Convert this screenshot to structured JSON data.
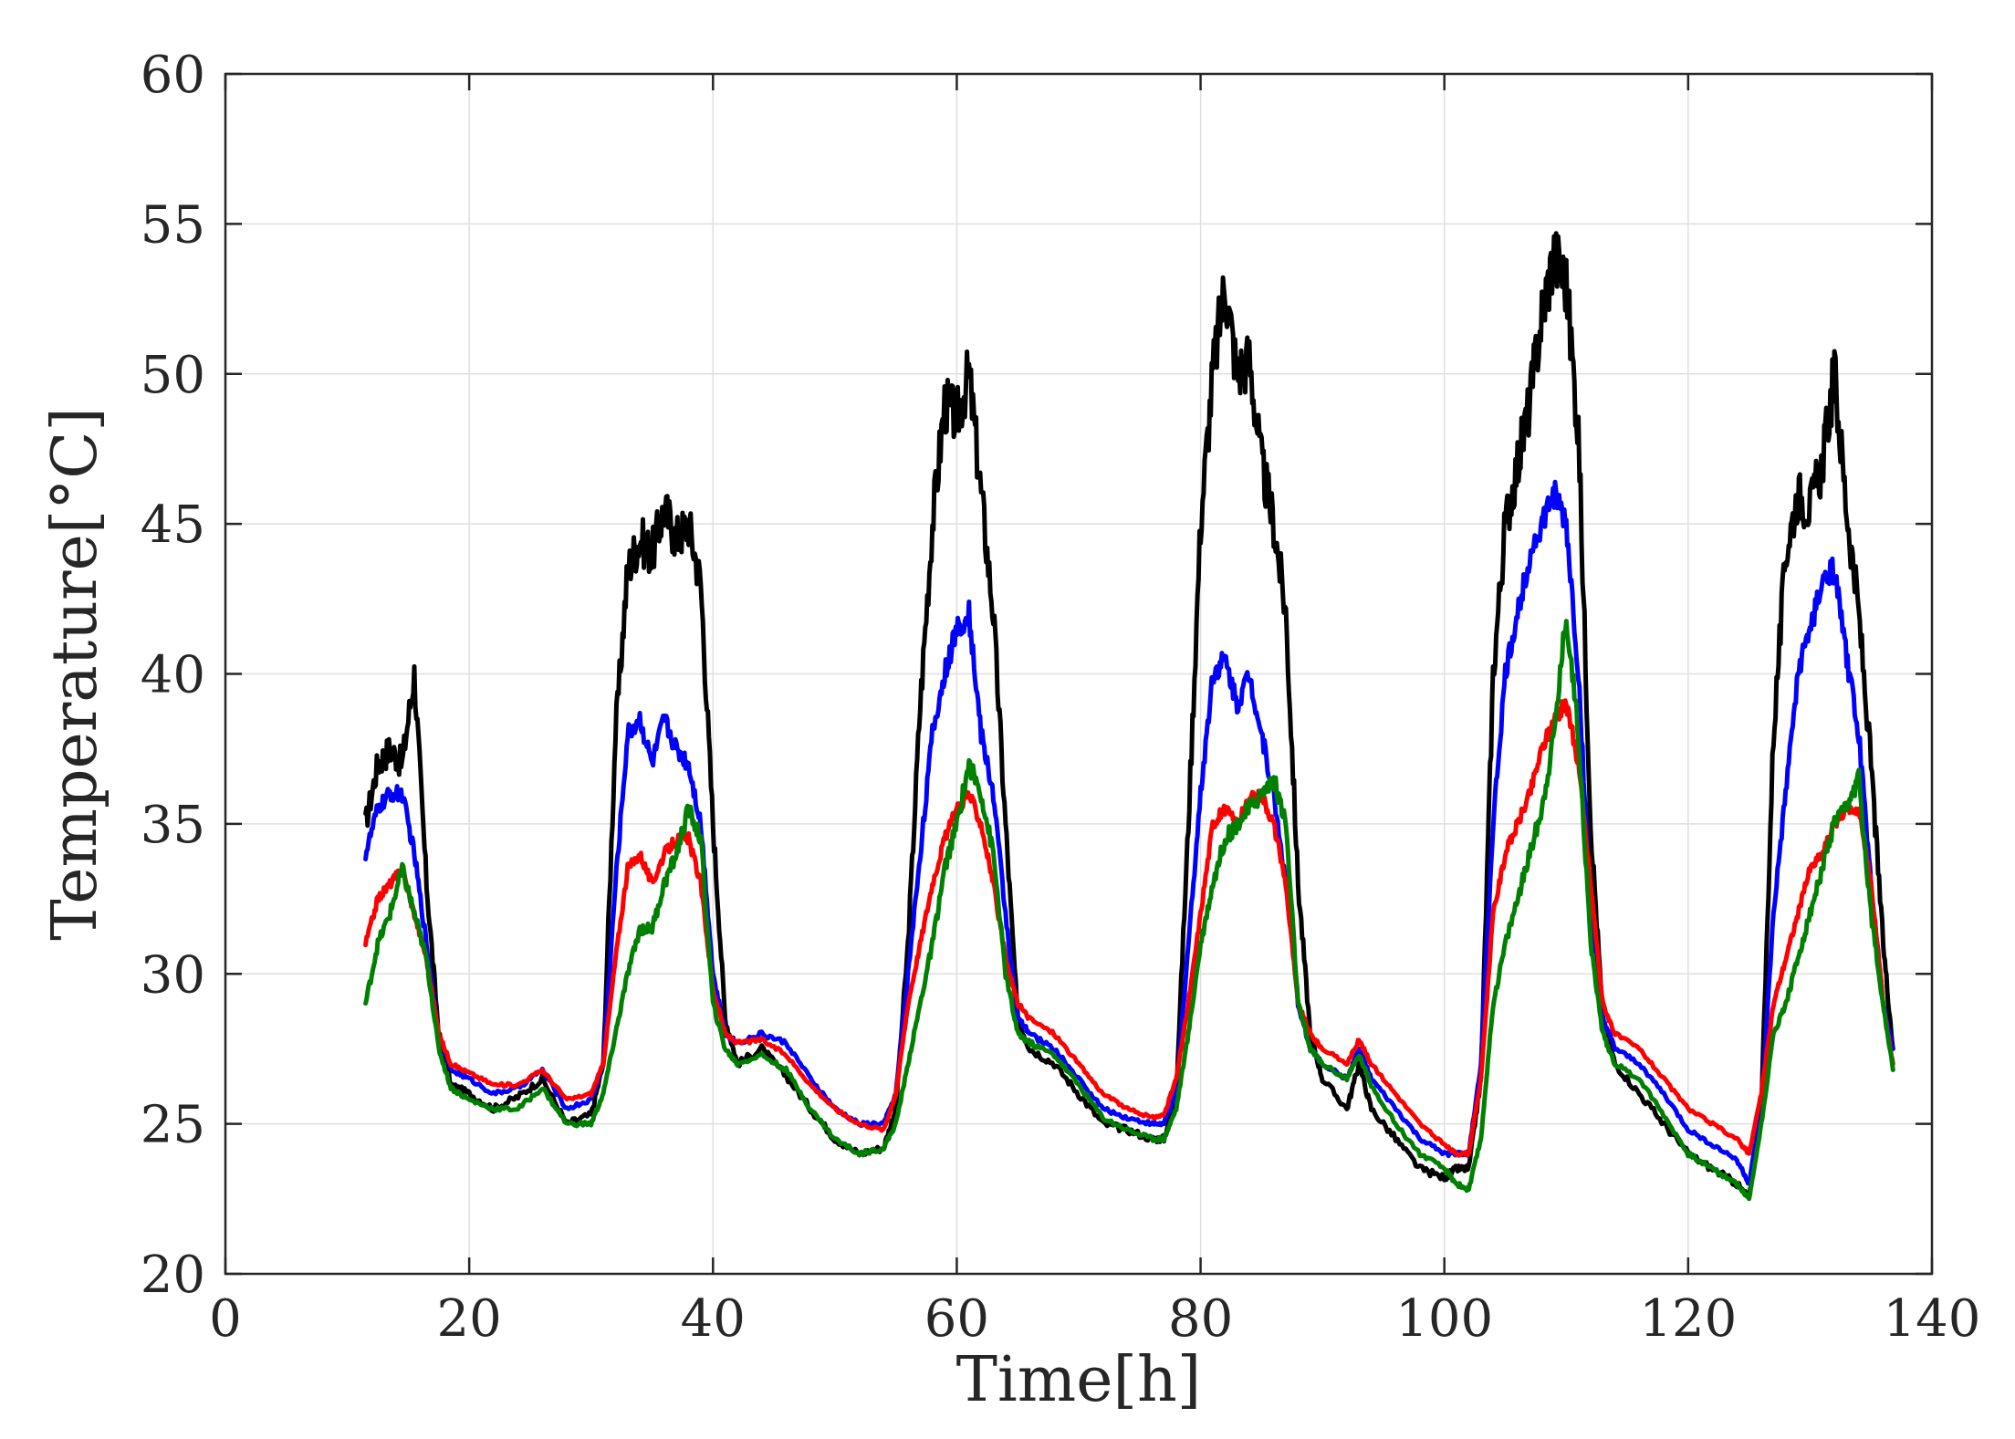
{
  "chart_data": {
    "type": "line",
    "title": "",
    "xlabel": "Time[h]",
    "ylabel": "Temperature[°C]",
    "xlim": [
      0,
      140
    ],
    "ylim": [
      20,
      60
    ],
    "grid": true,
    "legend": "none",
    "xticks": [
      0,
      20,
      40,
      60,
      80,
      100,
      120,
      140
    ],
    "yticks": [
      20,
      25,
      30,
      35,
      40,
      45,
      50,
      55,
      60
    ],
    "xtick_labels": [
      "0",
      "20",
      "40",
      "60",
      "80",
      "100",
      "120",
      "140"
    ],
    "ytick_labels": [
      "20",
      "25",
      "30",
      "35",
      "40",
      "45",
      "50",
      "55",
      "60"
    ],
    "series": [
      {
        "name": "black",
        "color": "#000000",
        "x": [
          11.5,
          12.5,
          13.5,
          14.5,
          15.5,
          16.5,
          17.5,
          18.5,
          20,
          22,
          24,
          26,
          28,
          30,
          31,
          32,
          33,
          34,
          35,
          36,
          37,
          38,
          39,
          40,
          41,
          42,
          44,
          46,
          48,
          50,
          52,
          54,
          55,
          56,
          57,
          58,
          59,
          60,
          61,
          62,
          63,
          64,
          65,
          66,
          68,
          70,
          72,
          74,
          76,
          77,
          78,
          79,
          80,
          81,
          82,
          83,
          84,
          85,
          86,
          87,
          88,
          89,
          90,
          92,
          93,
          94,
          96,
          98,
          100,
          101,
          102,
          103,
          104,
          105,
          106,
          107,
          108,
          109,
          110,
          111,
          112,
          113,
          114,
          116,
          118,
          120,
          122,
          124,
          125,
          126,
          127,
          128,
          129,
          130,
          131,
          132,
          133,
          134,
          135,
          136,
          136.8
        ],
        "y": [
          35,
          37,
          37.5,
          37,
          40,
          33,
          28,
          26.3,
          26,
          25.5,
          25.9,
          26.5,
          25,
          25.3,
          27,
          38,
          43.5,
          44.5,
          44,
          45.5,
          44.5,
          45,
          43,
          35,
          28.5,
          27,
          27.5,
          26.6,
          25.5,
          24.5,
          24,
          24.2,
          25.5,
          31,
          39,
          45,
          49,
          48.5,
          50,
          46,
          42,
          35,
          28.5,
          27.5,
          27,
          26,
          25,
          24.8,
          24.5,
          24.5,
          26,
          35,
          45,
          50,
          53,
          50,
          50.5,
          47,
          45,
          42,
          33,
          28,
          26.5,
          25.5,
          27,
          25.5,
          24.5,
          23.5,
          23.2,
          23.5,
          23.5,
          26.5,
          40,
          45,
          47,
          49,
          52,
          54,
          53,
          48,
          35,
          28.5,
          27,
          26,
          25,
          24,
          23.5,
          23,
          22.5,
          25.5,
          38,
          44,
          46,
          45.5,
          47,
          50,
          45.5,
          42,
          37,
          31,
          27.5
        ]
      },
      {
        "name": "blue",
        "color": "#0000ff",
        "x": [
          11.5,
          12.5,
          13.5,
          14.5,
          15.5,
          16.5,
          17.5,
          18.5,
          20,
          22,
          24,
          26,
          28,
          30,
          31,
          32,
          33,
          34,
          35,
          36,
          37,
          38,
          39,
          40,
          41,
          42,
          44,
          46,
          48,
          50,
          52,
          54,
          55,
          56,
          57,
          58,
          59,
          60,
          61,
          62,
          63,
          64,
          65,
          66,
          68,
          70,
          72,
          74,
          76,
          77,
          78,
          79,
          80,
          81,
          82,
          83,
          84,
          85,
          86,
          87,
          88,
          89,
          90,
          92,
          93,
          94,
          96,
          98,
          100,
          101,
          102,
          103,
          104,
          105,
          106,
          107,
          108,
          109,
          110,
          111,
          112,
          113,
          114,
          116,
          118,
          120,
          122,
          124,
          125,
          126,
          127,
          128,
          129,
          130,
          131,
          132,
          133,
          134,
          135,
          136,
          136.8
        ],
        "y": [
          34,
          35.5,
          36,
          36,
          34,
          31,
          28,
          26.8,
          26.5,
          26,
          26.2,
          26.8,
          25.5,
          25.8,
          27,
          33,
          38,
          38.5,
          37,
          38.5,
          37.5,
          37,
          35,
          30,
          28,
          27.7,
          28,
          27.7,
          26.5,
          25.5,
          25,
          25,
          26,
          30,
          34,
          38,
          40,
          41.5,
          42,
          38,
          36,
          32,
          28.5,
          28,
          27.5,
          26.5,
          25.5,
          25.2,
          25,
          25,
          26,
          31,
          36,
          40,
          40.5,
          39,
          40,
          38,
          36,
          33,
          29,
          27.5,
          27,
          26.5,
          27.5,
          26.5,
          25.5,
          24.5,
          24,
          24,
          24,
          27,
          35,
          40,
          42,
          44,
          45,
          46,
          45,
          40,
          32,
          28.5,
          27.5,
          27,
          26,
          24.8,
          24.3,
          23.8,
          23,
          25.5,
          32,
          36,
          40,
          41.5,
          43,
          43.5,
          40.5,
          38,
          33,
          29,
          27.5
        ]
      },
      {
        "name": "red",
        "color": "#ff0000",
        "x": [
          11.5,
          12.5,
          13.5,
          14.5,
          15.5,
          16.5,
          17.5,
          18.5,
          20,
          22,
          24,
          26,
          28,
          30,
          31,
          32,
          33,
          34,
          35,
          36,
          37,
          38,
          39,
          40,
          41,
          42,
          44,
          46,
          48,
          50,
          52,
          54,
          55,
          56,
          57,
          58,
          59,
          60,
          61,
          62,
          63,
          64,
          65,
          66,
          68,
          70,
          72,
          74,
          76,
          77,
          78,
          79,
          80,
          81,
          82,
          83,
          84,
          85,
          86,
          87,
          88,
          89,
          90,
          92,
          93,
          94,
          96,
          98,
          100,
          101,
          102,
          103,
          104,
          105,
          106,
          107,
          108,
          109,
          110,
          111,
          112,
          113,
          114,
          116,
          118,
          120,
          122,
          124,
          125,
          126,
          127,
          128,
          129,
          130,
          131,
          132,
          133,
          134,
          135,
          136,
          136.8
        ],
        "y": [
          31,
          32.5,
          33,
          33.5,
          32,
          30.5,
          28,
          27,
          26.7,
          26.3,
          26.3,
          26.8,
          25.8,
          26,
          27,
          30.5,
          33.5,
          34,
          33,
          34,
          34.5,
          34.5,
          33,
          29.5,
          28,
          27.7,
          27.8,
          27.3,
          26.3,
          25.5,
          25,
          24.8,
          26,
          29,
          31,
          33,
          34.5,
          35.5,
          36,
          35,
          33,
          30.5,
          29,
          28.5,
          28,
          27,
          26,
          25.5,
          25.2,
          25.3,
          26.5,
          29,
          32,
          35,
          35.5,
          35,
          35.8,
          36,
          35,
          33,
          29,
          28,
          27.5,
          27,
          27.8,
          27,
          26,
          25,
          24.3,
          24,
          24,
          26.5,
          32,
          34,
          35,
          36,
          37.5,
          38.5,
          39,
          37,
          33,
          29,
          28,
          27.5,
          26.5,
          25.5,
          25,
          24.5,
          24,
          26,
          29,
          30.5,
          32,
          33.5,
          34,
          35,
          35.5,
          35.5,
          33,
          29,
          27
        ]
      },
      {
        "name": "green",
        "color": "#008000",
        "x": [
          11.5,
          12.5,
          13.5,
          14.5,
          15.5,
          16.5,
          17.5,
          18.5,
          20,
          22,
          24,
          26,
          28,
          30,
          31,
          32,
          33,
          34,
          35,
          36,
          37,
          38,
          39,
          40,
          41,
          42,
          44,
          46,
          48,
          50,
          52,
          54,
          55,
          56,
          57,
          58,
          59,
          60,
          61,
          62,
          63,
          64,
          65,
          66,
          68,
          70,
          72,
          74,
          76,
          77,
          78,
          79,
          80,
          81,
          82,
          83,
          84,
          85,
          86,
          87,
          88,
          89,
          90,
          92,
          93,
          94,
          96,
          98,
          100,
          101,
          102,
          103,
          104,
          105,
          106,
          107,
          108,
          109,
          110,
          111,
          112,
          113,
          114,
          116,
          118,
          120,
          122,
          124,
          125,
          126,
          127,
          128,
          129,
          130,
          131,
          132,
          133,
          134,
          135,
          136,
          136.8
        ],
        "y": [
          29,
          31,
          32,
          33.5,
          32,
          30.5,
          27.5,
          26.2,
          25.8,
          25.5,
          25.5,
          26.2,
          25,
          25,
          26,
          28,
          30,
          31.5,
          31.5,
          33,
          34,
          35.5,
          34.5,
          29,
          27.5,
          27,
          27.3,
          26.8,
          25.5,
          24.5,
          24,
          24.2,
          25,
          27,
          29,
          31,
          33.5,
          35,
          37,
          36,
          34,
          30,
          28,
          27.7,
          27.3,
          26.3,
          25.2,
          24.8,
          24.5,
          24.5,
          25.5,
          28,
          31,
          33,
          34.5,
          35,
          35.5,
          36,
          36.5,
          35,
          29,
          27.5,
          27,
          26.5,
          27.3,
          26.3,
          25,
          24,
          23.5,
          23,
          22.8,
          24.5,
          29,
          31,
          32.5,
          34,
          35.5,
          38,
          42,
          38,
          31,
          28,
          27,
          26.5,
          25.3,
          24,
          23.5,
          23,
          22.5,
          25,
          28,
          29,
          30.5,
          32,
          33.5,
          35,
          35.5,
          36.5,
          32,
          29,
          26.8
        ]
      }
    ]
  }
}
